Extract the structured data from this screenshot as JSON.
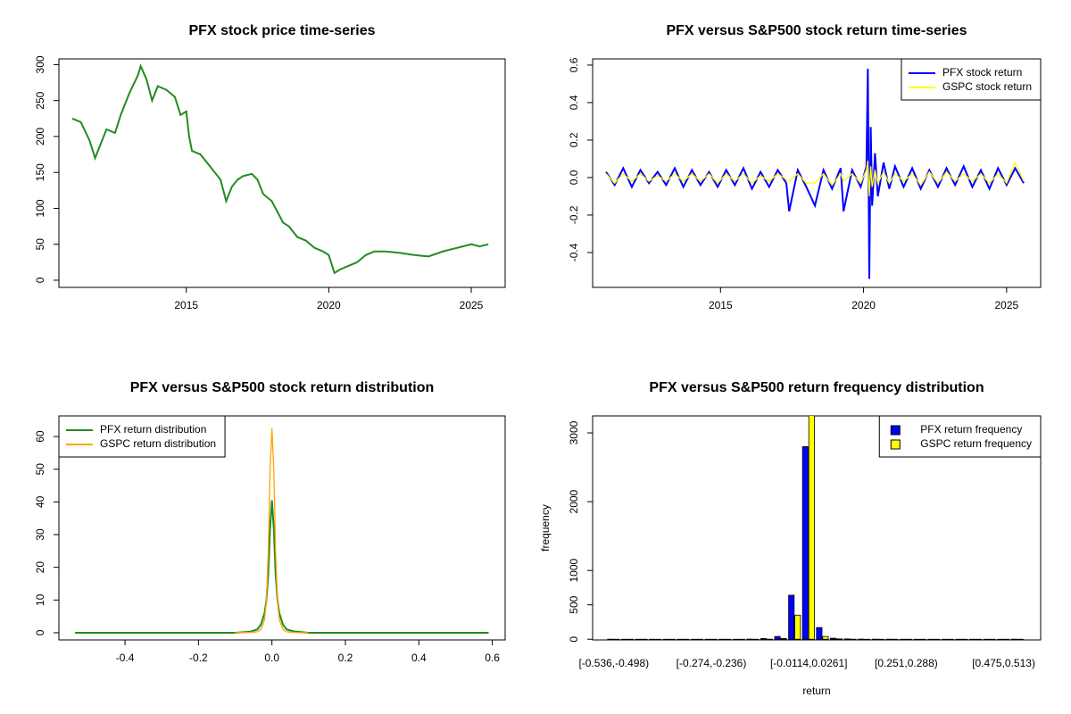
{
  "chart_data": [
    {
      "type": "line",
      "title": "PFX stock price time-series",
      "color": "#228b22",
      "x": [
        2011.0,
        2011.3,
        2011.6,
        2011.8,
        2012.0,
        2012.2,
        2012.5,
        2012.7,
        2013.0,
        2013.3,
        2013.4,
        2013.6,
        2013.8,
        2014.0,
        2014.3,
        2014.6,
        2014.8,
        2015.0,
        2015.1,
        2015.2,
        2015.5,
        2015.8,
        2016.0,
        2016.2,
        2016.4,
        2016.6,
        2016.8,
        2017.0,
        2017.3,
        2017.5,
        2017.7,
        2018.0,
        2018.2,
        2018.4,
        2018.6,
        2018.9,
        2019.2,
        2019.5,
        2019.8,
        2020.0,
        2020.2,
        2020.4,
        2020.7,
        2021.0,
        2021.3,
        2021.6,
        2022.0,
        2022.5,
        2023.0,
        2023.5,
        2024.0,
        2024.5,
        2025.0,
        2025.3,
        2025.6
      ],
      "values": [
        225,
        220,
        195,
        170,
        190,
        210,
        205,
        230,
        260,
        285,
        298,
        280,
        250,
        270,
        265,
        255,
        230,
        235,
        200,
        180,
        175,
        160,
        150,
        140,
        110,
        130,
        140,
        145,
        148,
        140,
        120,
        110,
        95,
        80,
        75,
        60,
        55,
        45,
        40,
        35,
        10,
        15,
        20,
        25,
        35,
        40,
        40,
        38,
        35,
        33,
        40,
        45,
        50,
        47,
        50
      ],
      "xlim": [
        2010.53,
        2026.19
      ],
      "xticks": [
        2015,
        2020,
        2025
      ],
      "ylim": [
        -10,
        308
      ],
      "yticks": [
        0,
        50,
        100,
        150,
        200,
        250,
        300
      ]
    },
    {
      "type": "line",
      "title": "PFX versus S&P500 stock return time-series",
      "legend": "topright",
      "x": [
        2011.0,
        2011.3,
        2011.6,
        2011.9,
        2012.2,
        2012.5,
        2012.8,
        2013.1,
        2013.4,
        2013.7,
        2014.0,
        2014.3,
        2014.6,
        2014.9,
        2015.2,
        2015.5,
        2015.8,
        2016.1,
        2016.4,
        2016.7,
        2017.0,
        2017.3,
        2017.4,
        2017.7,
        2018.0,
        2018.3,
        2018.6,
        2018.9,
        2019.2,
        2019.3,
        2019.6,
        2019.9,
        2020.1,
        2020.15,
        2020.2,
        2020.25,
        2020.3,
        2020.4,
        2020.5,
        2020.7,
        2020.9,
        2021.1,
        2021.4,
        2021.7,
        2022.0,
        2022.3,
        2022.6,
        2022.9,
        2023.2,
        2023.5,
        2023.8,
        2024.1,
        2024.4,
        2024.7,
        2025.0,
        2025.3,
        2025.6
      ],
      "series": [
        {
          "name": "PFX stock return",
          "color": "#0000ff",
          "values": [
            0.03,
            -0.04,
            0.05,
            -0.05,
            0.04,
            -0.03,
            0.03,
            -0.04,
            0.05,
            -0.05,
            0.04,
            -0.04,
            0.03,
            -0.05,
            0.04,
            -0.04,
            0.05,
            -0.06,
            0.03,
            -0.05,
            0.04,
            -0.03,
            -0.18,
            0.04,
            -0.05,
            -0.15,
            0.04,
            -0.06,
            0.05,
            -0.18,
            0.04,
            -0.05,
            0.06,
            0.58,
            -0.54,
            0.27,
            -0.15,
            0.13,
            -0.1,
            0.08,
            -0.06,
            0.06,
            -0.05,
            0.05,
            -0.06,
            0.04,
            -0.05,
            0.05,
            -0.04,
            0.06,
            -0.05,
            0.04,
            -0.06,
            0.05,
            -0.04,
            0.05,
            -0.03
          ]
        },
        {
          "name": "GSPC stock return",
          "color": "#ffff00",
          "values": [
            0.02,
            -0.03,
            0.02,
            -0.02,
            0.02,
            -0.02,
            0.01,
            -0.02,
            0.02,
            -0.02,
            0.02,
            -0.02,
            0.02,
            -0.03,
            0.02,
            -0.02,
            0.02,
            -0.03,
            0.01,
            -0.02,
            0.02,
            -0.01,
            -0.02,
            0.02,
            -0.03,
            -0.03,
            0.02,
            -0.04,
            0.02,
            -0.02,
            0.02,
            -0.03,
            0.04,
            0.09,
            -0.1,
            0.06,
            -0.05,
            0.04,
            -0.03,
            0.03,
            -0.03,
            0.02,
            -0.02,
            0.02,
            -0.04,
            0.03,
            -0.03,
            0.03,
            -0.02,
            0.02,
            -0.02,
            0.02,
            -0.03,
            0.02,
            -0.03,
            0.08,
            -0.02
          ]
        }
      ],
      "xlim": [
        2010.53,
        2026.19
      ],
      "xticks": [
        2015,
        2020,
        2025
      ],
      "ylim": [
        -0.586,
        0.633
      ],
      "yticks": [
        -0.4,
        -0.2,
        {
          "value": 0,
          "label": "0.0"
        },
        0.2,
        0.4,
        0.6
      ]
    },
    {
      "type": "line",
      "title": "PFX versus S&P500 stock return distribution",
      "legend": "topleft",
      "x": [
        -0.536,
        -0.3,
        -0.1,
        -0.06,
        -0.04,
        -0.03,
        -0.02,
        -0.015,
        -0.01,
        -0.005,
        0,
        0.005,
        0.01,
        0.015,
        0.02,
        0.03,
        0.04,
        0.06,
        0.08,
        0.1,
        0.3,
        0.59
      ],
      "series": [
        {
          "name": "PFX return distribution",
          "color": "#228b22",
          "values": [
            0,
            0,
            0,
            0.3,
            1,
            2.5,
            6,
            10,
            18,
            32,
            40.5,
            32,
            18,
            10,
            6,
            2.5,
            1,
            0.4,
            0.2,
            0,
            0,
            0
          ]
        },
        {
          "name": "GSPC return distribution",
          "color": "#ffa500",
          "values": [
            null,
            null,
            0,
            0.1,
            0.3,
            1,
            4,
            10,
            25,
            50,
            62.5,
            50,
            25,
            10,
            4,
            1,
            0.3,
            0.1,
            0,
            0,
            null,
            null
          ]
        }
      ],
      "xlim": [
        -0.58,
        0.635
      ],
      "xticks": [
        -0.4,
        -0.2,
        {
          "value": 0,
          "label": "0.0"
        },
        0.2,
        0.4,
        0.6
      ],
      "ylim": [
        -2.2,
        66.3
      ],
      "yticks": [
        0,
        10,
        20,
        30,
        40,
        50,
        60
      ]
    },
    {
      "type": "bar",
      "title": "PFX versus S&P500 return frequency distribution",
      "legend": "topright",
      "xlabel": "return",
      "ylabel": "frequency",
      "categories": [
        "[-0.536,-0.498)",
        null,
        null,
        null,
        null,
        null,
        null,
        "[-0.274,-0.236)",
        null,
        null,
        null,
        null,
        null,
        null,
        "[-0.0114,0.0261]",
        null,
        null,
        null,
        null,
        null,
        null,
        "[0.251,0.288)",
        null,
        null,
        null,
        null,
        null,
        null,
        "[0.475,0.513)",
        null
      ],
      "series": [
        {
          "name": "PFX return frequency",
          "color": "#0000ff",
          "values": [
            1,
            0,
            0,
            0,
            0,
            0,
            0,
            0,
            0,
            0,
            2,
            10,
            40,
            640,
            2800,
            170,
            15,
            5,
            2,
            1,
            1,
            0,
            0,
            0,
            0,
            0,
            0,
            0,
            0,
            1
          ]
        },
        {
          "name": "GSPC return frequency",
          "color": "#ffff00",
          "values": [
            0,
            0,
            0,
            0,
            0,
            0,
            0,
            0,
            0,
            0,
            0,
            1,
            10,
            350,
            3330,
            40,
            5,
            1,
            0,
            0,
            0,
            0,
            0,
            0,
            0,
            0,
            0,
            0,
            0,
            0
          ]
        }
      ],
      "ylim": [
        -10,
        3247
      ],
      "yticks": [
        0,
        500,
        1000,
        2000,
        3000
      ]
    }
  ]
}
